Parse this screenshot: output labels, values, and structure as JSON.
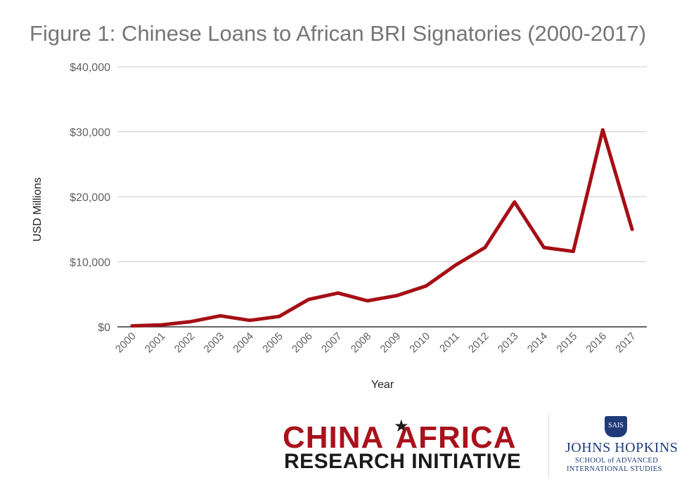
{
  "chart_data": {
    "type": "line",
    "title": "Figure 1: Chinese Loans to African BRI Signatories (2000-2017)",
    "xlabel": "Year",
    "ylabel": "USD Millions",
    "categories": [
      "2000",
      "2001",
      "2002",
      "2003",
      "2004",
      "2005",
      "2006",
      "2007",
      "2008",
      "2009",
      "2010",
      "2011",
      "2012",
      "2013",
      "2014",
      "2015",
      "2016",
      "2017"
    ],
    "series": [
      {
        "values": [
          150,
          300,
          800,
          1700,
          1000,
          1600,
          4200,
          5200,
          4000,
          4800,
          6300,
          9500,
          12200,
          19200,
          12200,
          11600,
          30300,
          15000
        ]
      }
    ],
    "ylim": [
      0,
      40000
    ],
    "yticks": [
      {
        "value": 0,
        "label": "$0"
      },
      {
        "value": 10000,
        "label": "$10,000"
      },
      {
        "value": 20000,
        "label": "$20,000"
      },
      {
        "value": 30000,
        "label": "$30,000"
      },
      {
        "value": 40000,
        "label": "$40,000"
      }
    ],
    "grid": true,
    "line_color": "#a50f15",
    "grid_color": "#cccccc",
    "axis_color": "#333333"
  },
  "logos": {
    "cari": {
      "line1_left": "CHINA",
      "line1_right": "AFRICA",
      "line2": "RESEARCH INITIATIVE"
    },
    "jhu": {
      "shield": "SAIS",
      "name": "JOHNS HOPKINS",
      "sub1": "SCHOOL of ADVANCED",
      "sub2": "INTERNATIONAL STUDIES"
    }
  }
}
